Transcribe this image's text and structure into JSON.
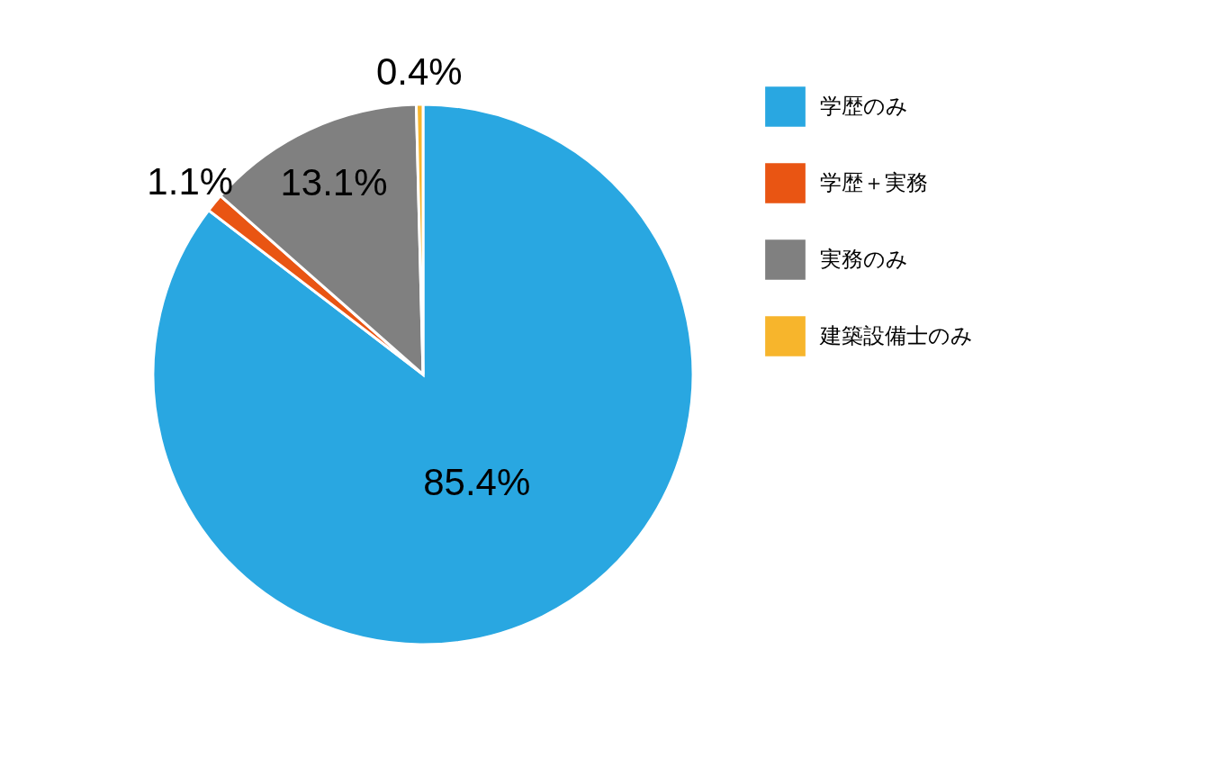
{
  "chart_data": {
    "type": "pie",
    "categories": [
      "学歴のみ",
      "学歴＋実務",
      "実務のみ",
      "建築設備士のみ"
    ],
    "values": [
      85.4,
      1.1,
      13.1,
      0.4
    ],
    "colors": [
      "#29a7e1",
      "#e95513",
      "#808080",
      "#f7b52c"
    ],
    "value_labels": [
      "85.4%",
      "1.1%",
      "13.1%",
      "0.4%"
    ],
    "legend": "right"
  }
}
